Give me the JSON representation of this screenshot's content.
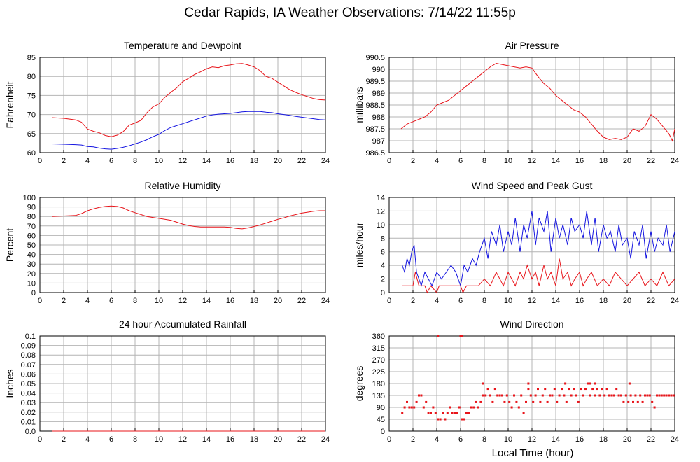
{
  "page": {
    "title": "Cedar Rapids, IA Weather Observations: 7/14/22 11:55p",
    "xlabel": "Local Time (hour)"
  },
  "colors": {
    "red": "#e8141a",
    "blue": "#1414e0",
    "grid": "#b4b4b4"
  },
  "chart_data": [
    {
      "id": "temp",
      "type": "line",
      "title": "Temperature and Dewpoint",
      "ylabel": "Fahrenheit",
      "xlim": [
        0,
        24
      ],
      "ylim": [
        60,
        85
      ],
      "xticks": [
        2,
        4,
        6,
        8,
        10,
        12,
        14,
        16,
        18,
        20,
        22,
        24
      ],
      "yticks": [
        60,
        65,
        70,
        75,
        80,
        85
      ],
      "grid": true,
      "series": [
        {
          "color": "red",
          "style": "line",
          "x": [
            1,
            2,
            3,
            3.5,
            4,
            4.5,
            5,
            5.5,
            6,
            6.5,
            7,
            7.5,
            8,
            8.5,
            9,
            9.5,
            10,
            10.5,
            11,
            11.5,
            12,
            12.5,
            13,
            13.5,
            14,
            14.5,
            15,
            15.5,
            16,
            16.5,
            17,
            17.5,
            18,
            18.5,
            19,
            19.5,
            20,
            20.5,
            21,
            21.5,
            22,
            22.5,
            23,
            23.5,
            24
          ],
          "y": [
            69.2,
            69,
            68.6,
            68,
            66.2,
            65.6,
            65.2,
            64.5,
            64.2,
            64.6,
            65.5,
            67.2,
            67.8,
            68.5,
            70.5,
            72,
            72.8,
            74.5,
            75.8,
            77,
            78.6,
            79.5,
            80.5,
            81.2,
            82,
            82.5,
            82.3,
            82.8,
            83,
            83.3,
            83.4,
            83,
            82.5,
            81.5,
            80,
            79.5,
            78.5,
            77.5,
            76.5,
            75.8,
            75.2,
            74.7,
            74.2,
            73.9,
            73.8
          ]
        },
        {
          "color": "blue",
          "style": "line",
          "x": [
            1,
            2,
            3,
            3.5,
            4,
            4.5,
            5,
            5.5,
            6,
            6.5,
            7,
            7.5,
            8,
            8.5,
            9,
            9.5,
            10,
            10.5,
            11,
            11.5,
            12,
            12.5,
            13,
            13.5,
            14,
            14.5,
            15,
            15.5,
            16,
            16.5,
            17,
            17.5,
            18,
            18.5,
            19,
            19.5,
            20,
            20.5,
            21,
            21.5,
            22,
            22.5,
            23,
            23.5,
            24
          ],
          "y": [
            62.3,
            62.2,
            62.1,
            62,
            61.6,
            61.5,
            61.2,
            61,
            60.9,
            61.1,
            61.4,
            61.8,
            62.3,
            62.8,
            63.4,
            64.2,
            64.8,
            65.8,
            66.6,
            67.1,
            67.6,
            68.1,
            68.6,
            69.1,
            69.6,
            69.9,
            70.1,
            70.2,
            70.3,
            70.5,
            70.7,
            70.8,
            70.8,
            70.8,
            70.6,
            70.5,
            70.2,
            70,
            69.8,
            69.5,
            69.3,
            69.1,
            68.9,
            68.7,
            68.6
          ]
        }
      ]
    },
    {
      "id": "pressure",
      "type": "line",
      "title": "Air Pressure",
      "ylabel": "millibars",
      "xlim": [
        0,
        24
      ],
      "ylim": [
        986.5,
        990.5
      ],
      "xticks": [
        2,
        4,
        6,
        8,
        10,
        12,
        14,
        16,
        18,
        20,
        22,
        24
      ],
      "yticks": [
        986.5,
        987.0,
        987.5,
        988.0,
        988.5,
        989.0,
        989.5,
        990.0,
        990.5
      ],
      "grid": true,
      "series": [
        {
          "color": "red",
          "style": "line",
          "x": [
            1,
            1.5,
            2,
            2.5,
            3,
            3.5,
            4,
            4.5,
            5,
            5.5,
            6,
            6.5,
            7,
            7.5,
            8,
            8.5,
            9,
            9.5,
            10,
            10.5,
            11,
            11.5,
            12,
            12.5,
            13,
            13.5,
            14,
            14.5,
            15,
            15.5,
            16,
            16.5,
            17,
            17.5,
            18,
            18.5,
            19,
            19.5,
            20,
            20.5,
            21,
            21.5,
            22,
            22.5,
            23,
            23.5,
            23.8,
            24
          ],
          "y": [
            987.5,
            987.7,
            987.8,
            987.9,
            988.0,
            988.2,
            988.5,
            988.6,
            988.7,
            988.9,
            989.1,
            989.3,
            989.5,
            989.7,
            989.9,
            990.1,
            990.25,
            990.2,
            990.15,
            990.1,
            990.05,
            990.1,
            990.05,
            989.7,
            989.4,
            989.2,
            988.9,
            988.7,
            988.5,
            988.3,
            988.2,
            988.0,
            987.7,
            987.4,
            987.15,
            987.05,
            987.1,
            987.05,
            987.15,
            987.5,
            987.4,
            987.6,
            988.1,
            987.9,
            987.6,
            987.3,
            987.0,
            987.5
          ]
        }
      ]
    },
    {
      "id": "humidity",
      "type": "line",
      "title": "Relative Humidity",
      "ylabel": "Percent",
      "xlim": [
        0,
        24
      ],
      "ylim": [
        0,
        100
      ],
      "xticks": [
        2,
        4,
        6,
        8,
        10,
        12,
        14,
        16,
        18,
        20,
        22,
        24
      ],
      "yticks": [
        0,
        10,
        20,
        30,
        40,
        50,
        60,
        70,
        80,
        90,
        100
      ],
      "grid": true,
      "series": [
        {
          "color": "red",
          "style": "line",
          "x": [
            1,
            2,
            3,
            3.5,
            4,
            4.5,
            5,
            5.5,
            6,
            6.5,
            7,
            7.5,
            8,
            8.5,
            9,
            9.5,
            10,
            10.5,
            11,
            11.5,
            12,
            12.5,
            13,
            13.5,
            14,
            14.5,
            15,
            15.5,
            16,
            16.5,
            17,
            17.5,
            18,
            18.5,
            19,
            19.5,
            20,
            20.5,
            21,
            21.5,
            22,
            22.5,
            23,
            23.5,
            24
          ],
          "y": [
            80,
            80.5,
            81,
            83,
            86,
            88,
            89.5,
            90.5,
            91,
            90.5,
            89,
            86,
            84,
            82,
            80,
            79,
            78,
            77,
            76,
            74,
            72,
            70.5,
            69.5,
            69,
            69,
            69,
            69,
            69,
            68.5,
            67.5,
            67,
            68,
            69.5,
            71,
            73,
            75,
            77,
            78.5,
            80.5,
            82,
            83.5,
            84.5,
            85.5,
            86,
            86
          ]
        }
      ]
    },
    {
      "id": "wind",
      "type": "line",
      "title": "Wind Speed and Peak Gust",
      "ylabel": "miles/hour",
      "xlim": [
        0,
        24
      ],
      "ylim": [
        0,
        14
      ],
      "xticks": [
        2,
        4,
        6,
        8,
        10,
        12,
        14,
        16,
        18,
        20,
        22,
        24
      ],
      "yticks": [
        0,
        2,
        4,
        6,
        8,
        10,
        12,
        14
      ],
      "grid": true,
      "series": [
        {
          "color": "blue",
          "style": "line",
          "x": [
            1.1,
            1.3,
            1.5,
            1.7,
            1.9,
            2.1,
            2.3,
            2.5,
            2.7,
            3,
            3.3,
            3.6,
            4,
            4.4,
            4.8,
            5.2,
            5.6,
            6,
            6.3,
            6.6,
            7,
            7.3,
            7.6,
            8,
            8.3,
            8.6,
            9,
            9.3,
            9.6,
            10,
            10.3,
            10.6,
            11,
            11.3,
            11.6,
            12,
            12.3,
            12.6,
            13,
            13.3,
            13.6,
            14,
            14.3,
            14.6,
            15,
            15.3,
            15.6,
            16,
            16.3,
            16.6,
            17,
            17.3,
            17.6,
            18,
            18.3,
            18.6,
            19,
            19.3,
            19.6,
            20,
            20.3,
            20.6,
            21,
            21.3,
            21.6,
            22,
            22.3,
            22.6,
            23,
            23.3,
            23.6,
            24
          ],
          "y": [
            4,
            3,
            5,
            4,
            6,
            7,
            3,
            2,
            1,
            3,
            2,
            1,
            3,
            2,
            3,
            4,
            3,
            1,
            4,
            3,
            5,
            4,
            6,
            8,
            5,
            9,
            7,
            10,
            6,
            9,
            7,
            11,
            6,
            10,
            8,
            12,
            7,
            11,
            9,
            12,
            6,
            11,
            8,
            10,
            7,
            11,
            9,
            10,
            8,
            12,
            7,
            11,
            6,
            10,
            8,
            9,
            6,
            10,
            7,
            8,
            5,
            9,
            7,
            10,
            5,
            9,
            6,
            8,
            7,
            10,
            6,
            9
          ]
        },
        {
          "color": "red",
          "style": "line",
          "x": [
            1.1,
            1.5,
            2,
            2.2,
            2.5,
            3,
            3.2,
            3.5,
            4,
            4.2,
            4.5,
            5,
            5.5,
            6,
            6.2,
            6.5,
            7,
            7.5,
            8,
            8.5,
            9,
            9.3,
            9.6,
            10,
            10.3,
            10.6,
            11,
            11.3,
            11.6,
            12,
            12.3,
            12.6,
            13,
            13.3,
            13.6,
            14,
            14.3,
            14.6,
            15,
            15.3,
            15.6,
            16,
            16.3,
            16.6,
            17,
            17.5,
            18,
            18.5,
            19,
            19.5,
            20,
            20.5,
            21,
            21.5,
            22,
            22.5,
            23,
            23.5,
            24
          ],
          "y": [
            1,
            1,
            1,
            3,
            1,
            1,
            0,
            1,
            0,
            1,
            1,
            1,
            1,
            1,
            0,
            1,
            1,
            1,
            2,
            1,
            3,
            2,
            1,
            3,
            2,
            1,
            3,
            2,
            4,
            2,
            3,
            1,
            4,
            2,
            3,
            1,
            5,
            2,
            3,
            1,
            2,
            3,
            1,
            2,
            3,
            1,
            2,
            1,
            3,
            2,
            1,
            2,
            3,
            1,
            2,
            1,
            3,
            1,
            2
          ]
        }
      ]
    },
    {
      "id": "rain",
      "type": "line",
      "title": "24 hour Accumulated Rainfall",
      "ylabel": "Inches",
      "xlim": [
        0,
        24
      ],
      "ylim": [
        0,
        0.1
      ],
      "xticks": [
        2,
        4,
        6,
        8,
        10,
        12,
        14,
        16,
        18,
        20,
        22,
        24
      ],
      "yticks": [
        0.0,
        0.01,
        0.02,
        0.03,
        0.04,
        0.05,
        0.06,
        0.07,
        0.08,
        0.09,
        0.1
      ],
      "yticklabels": [
        "0.0",
        "0.01",
        "0.02",
        "0.03",
        "0.04",
        "0.05",
        "0.06",
        "0.07",
        "0.08",
        "0.09",
        "0.1"
      ],
      "grid": true,
      "series": [
        {
          "color": "red",
          "style": "line",
          "x": [
            1,
            24
          ],
          "y": [
            0,
            0
          ]
        }
      ]
    },
    {
      "id": "direction",
      "type": "scatter",
      "title": "Wind Direction",
      "ylabel": "degrees",
      "xlabel": "Local Time (hour)",
      "xlim": [
        0,
        24
      ],
      "ylim": [
        0,
        360
      ],
      "xticks": [
        2,
        4,
        6,
        8,
        10,
        12,
        14,
        16,
        18,
        20,
        22,
        24
      ],
      "yticks": [
        0,
        45,
        90,
        135,
        180,
        225,
        270,
        315,
        360
      ],
      "grid": true,
      "series": [
        {
          "color": "red",
          "style": "dots",
          "x": [
            1.1,
            1.3,
            1.5,
            1.7,
            1.9,
            2.1,
            2.3,
            2.5,
            2.7,
            2.9,
            3.1,
            3.3,
            3.5,
            3.7,
            3.9,
            4.1,
            4.3,
            4.5,
            4.7,
            4.9,
            5.1,
            5.3,
            5.5,
            5.7,
            5.9,
            6.1,
            6.3,
            6.5,
            6.7,
            6.9,
            7.1,
            7.3,
            7.5,
            7.7,
            7.9,
            8.1,
            8.3,
            8.5,
            8.7,
            8.9,
            9.1,
            9.3,
            9.5,
            9.7,
            9.9,
            10.1,
            10.3,
            10.5,
            10.7,
            10.9,
            11.1,
            11.3,
            11.5,
            11.7,
            11.9,
            12.1,
            12.3,
            12.5,
            12.7,
            12.9,
            13.1,
            13.3,
            13.5,
            13.7,
            13.9,
            14.1,
            14.3,
            14.5,
            14.7,
            14.9,
            15.1,
            15.3,
            15.5,
            15.7,
            15.9,
            16.1,
            16.3,
            16.5,
            16.7,
            16.9,
            17.1,
            17.3,
            17.5,
            17.7,
            17.9,
            18.1,
            18.3,
            18.5,
            18.7,
            18.9,
            19.1,
            19.3,
            19.5,
            19.7,
            19.9,
            20.1,
            20.3,
            20.5,
            20.7,
            20.9,
            21.1,
            21.3,
            21.5,
            21.7,
            21.9,
            22.1,
            22.3,
            22.5,
            22.7,
            22.9,
            23.1,
            23.3,
            23.5,
            23.7,
            23.9,
            4.1,
            6.0,
            6.1,
            7.9,
            11.7,
            14.8,
            16.9,
            17.3,
            20.2
          ],
          "y": [
            70,
            90,
            110,
            90,
            90,
            90,
            110,
            135,
            135,
            90,
            110,
            70,
            70,
            90,
            70,
            45,
            45,
            70,
            45,
            70,
            90,
            70,
            70,
            70,
            90,
            45,
            45,
            70,
            70,
            90,
            90,
            110,
            90,
            110,
            135,
            135,
            160,
            135,
            110,
            160,
            135,
            135,
            135,
            110,
            135,
            110,
            90,
            135,
            110,
            90,
            135,
            70,
            110,
            160,
            135,
            110,
            135,
            160,
            110,
            135,
            160,
            110,
            135,
            135,
            160,
            110,
            135,
            160,
            135,
            110,
            160,
            135,
            160,
            135,
            110,
            160,
            135,
            160,
            180,
            135,
            160,
            135,
            160,
            135,
            160,
            135,
            160,
            135,
            135,
            135,
            160,
            135,
            135,
            110,
            135,
            110,
            135,
            110,
            135,
            110,
            135,
            110,
            135,
            135,
            135,
            110,
            90,
            135,
            135,
            135,
            135,
            135,
            135,
            135,
            135,
            360,
            360,
            360,
            180,
            180,
            180,
            180,
            180,
            180
          ]
        }
      ]
    }
  ]
}
